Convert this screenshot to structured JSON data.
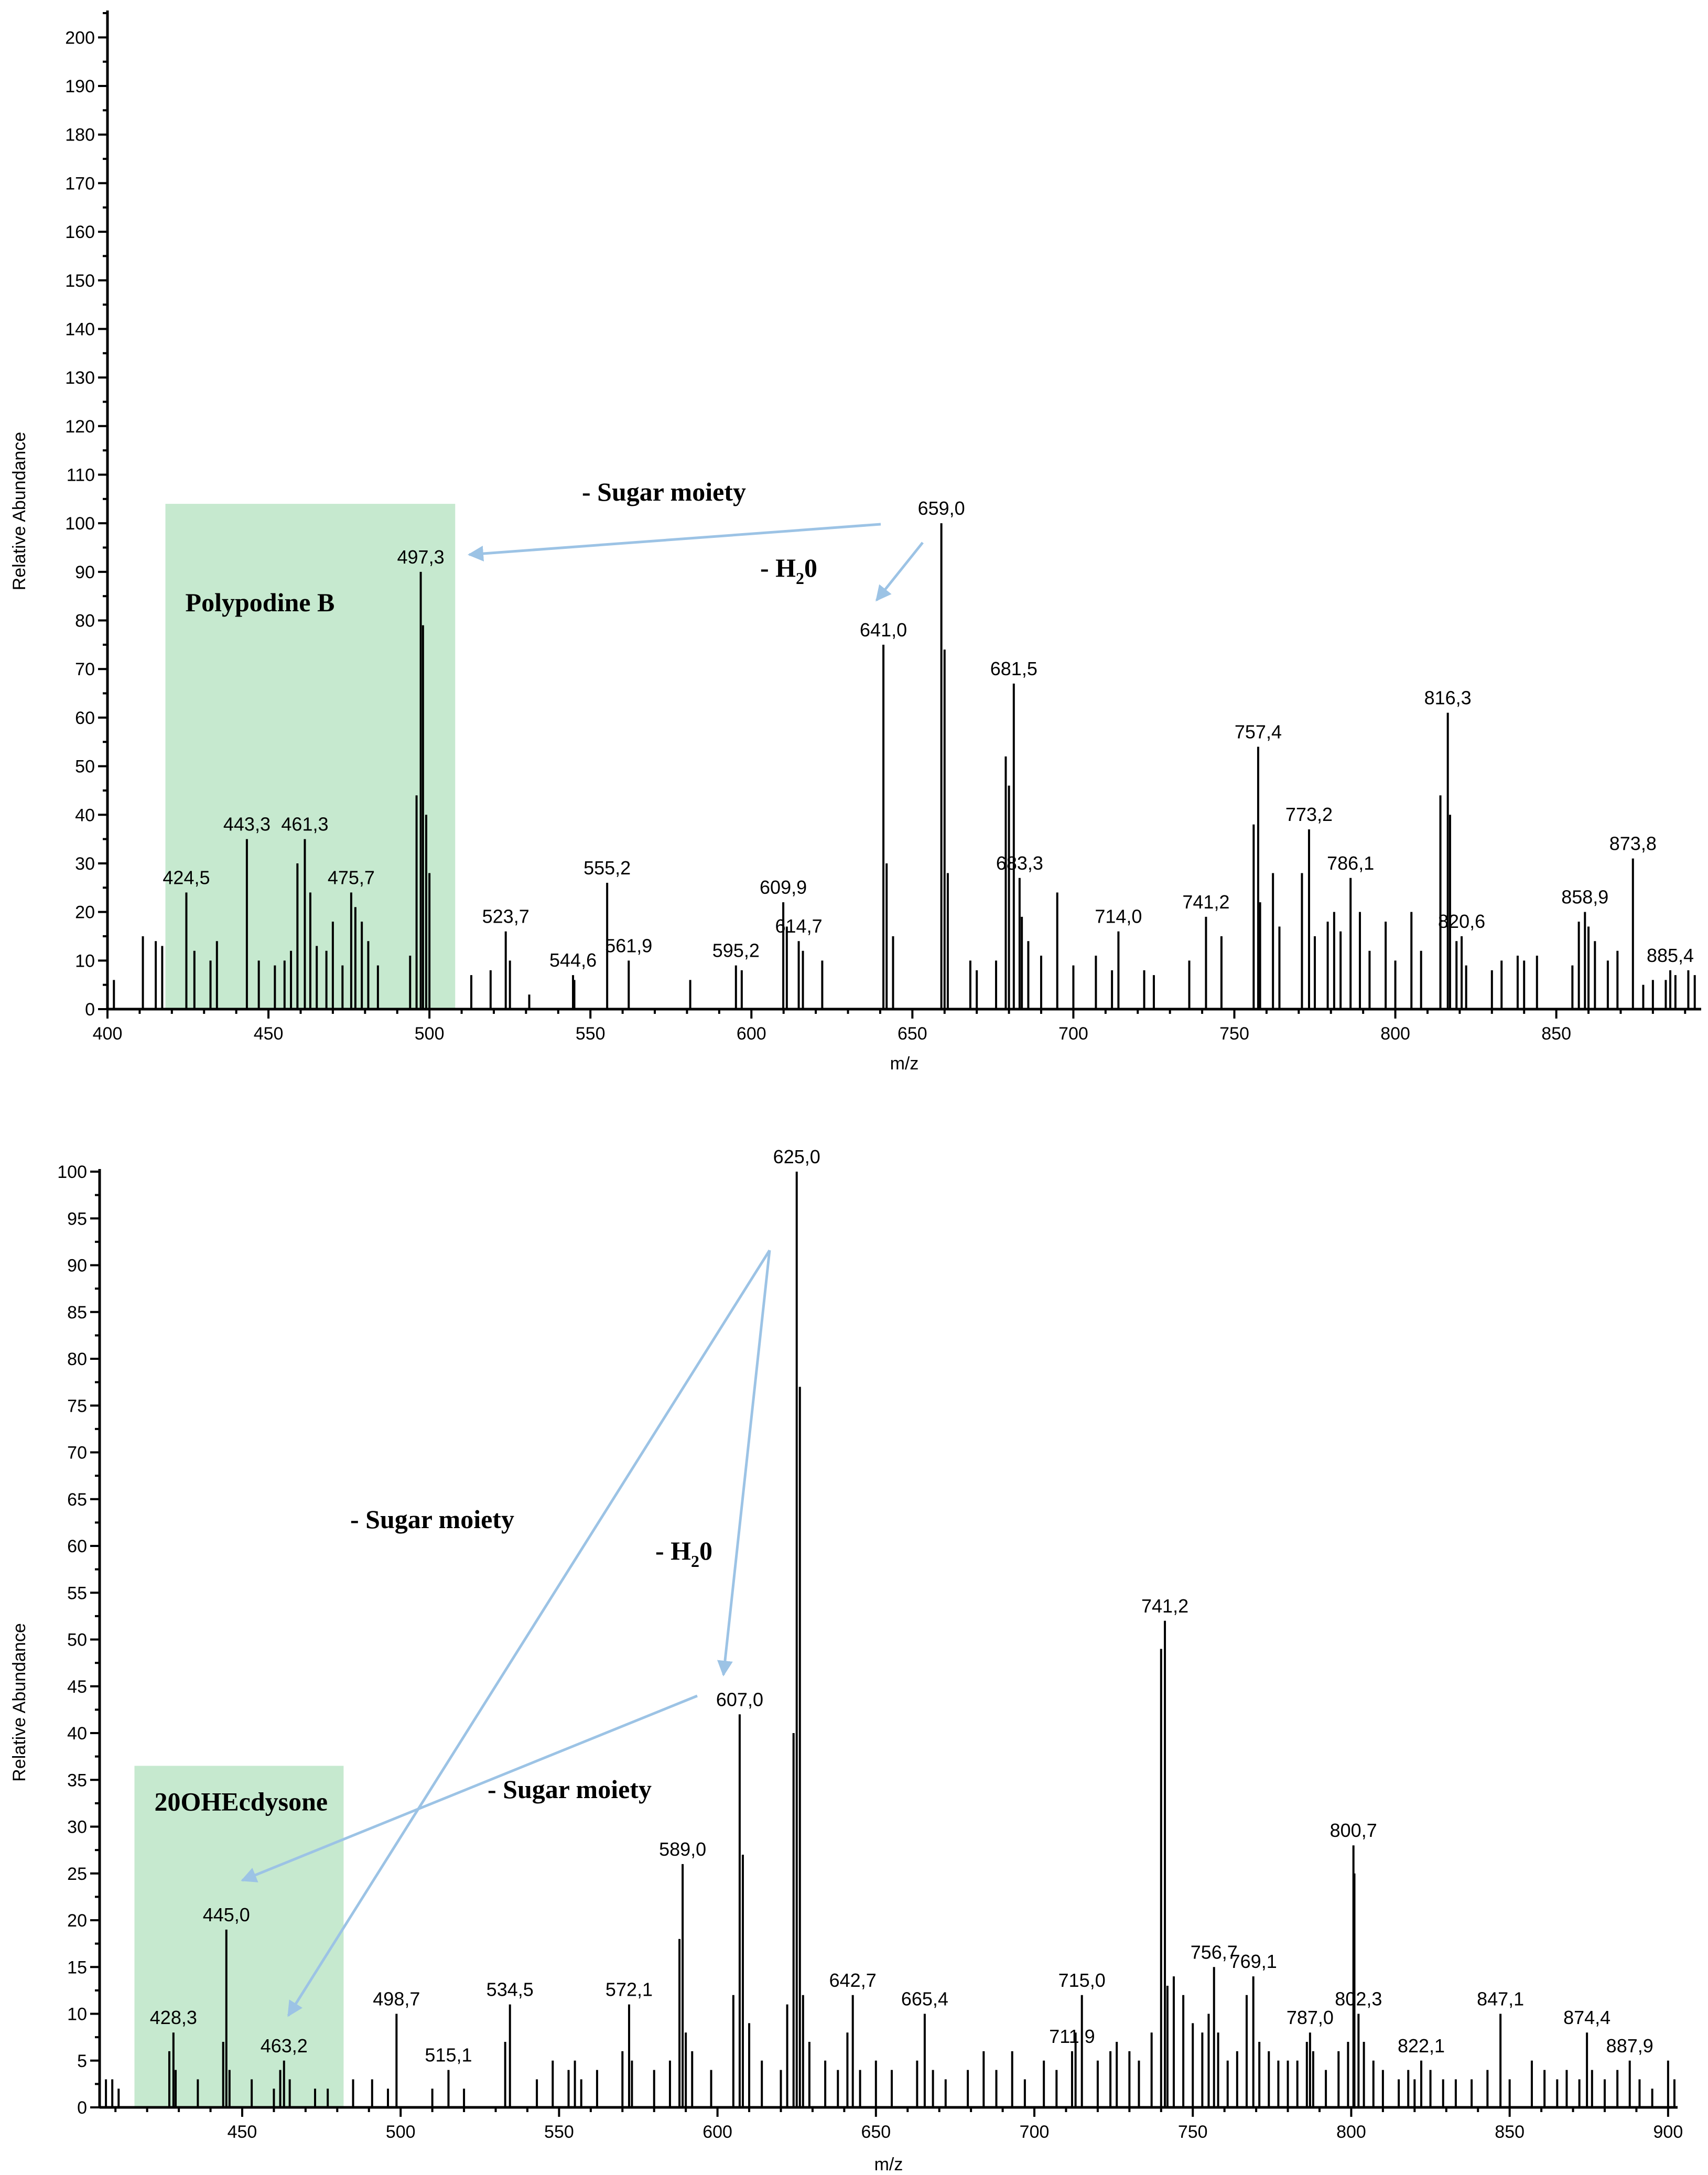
{
  "colors": {
    "highlight": "#c6e9cf",
    "arrow": "#9cc3e5",
    "bars": "#000000",
    "label_tick": "#2bbf4a"
  },
  "chart_data": [
    {
      "type": "bar",
      "title": "",
      "xlabel": "m/z",
      "ylabel": "Relative Abundance",
      "xlim": [
        400,
        895
      ],
      "ylim": [
        0,
        205
      ],
      "xticks": [
        400,
        450,
        500,
        550,
        600,
        650,
        700,
        750,
        800,
        850
      ],
      "yticks": [
        0,
        10,
        20,
        30,
        40,
        50,
        60,
        70,
        80,
        90,
        100,
        110,
        120,
        130,
        140,
        150,
        160,
        170,
        180,
        190,
        200
      ],
      "highlight": {
        "label": "Polypodine B",
        "x_range": [
          418,
          508
        ],
        "y_top": 104
      },
      "labeled_peaks": [
        {
          "mz": 424.5,
          "label": "424,5",
          "intensity": 24
        },
        {
          "mz": 443.3,
          "label": "443,3",
          "intensity": 35
        },
        {
          "mz": 461.3,
          "label": "461,3",
          "intensity": 35
        },
        {
          "mz": 475.7,
          "label": "475,7",
          "intensity": 24
        },
        {
          "mz": 497.3,
          "label": "497,3",
          "intensity": 90
        },
        {
          "mz": 523.7,
          "label": "523,7",
          "intensity": 16
        },
        {
          "mz": 544.6,
          "label": "544,6",
          "intensity": 7
        },
        {
          "mz": 555.2,
          "label": "555,2",
          "intensity": 26
        },
        {
          "mz": 561.9,
          "label": "561,9",
          "intensity": 10
        },
        {
          "mz": 595.2,
          "label": "595,2",
          "intensity": 9
        },
        {
          "mz": 609.9,
          "label": "609,9",
          "intensity": 22
        },
        {
          "mz": 614.7,
          "label": "614,7",
          "intensity": 14
        },
        {
          "mz": 641.0,
          "label": "641,0",
          "intensity": 75
        },
        {
          "mz": 659.0,
          "label": "659,0",
          "intensity": 100
        },
        {
          "mz": 681.5,
          "label": "681,5",
          "intensity": 67
        },
        {
          "mz": 683.3,
          "label": "683,3",
          "intensity": 27
        },
        {
          "mz": 714.0,
          "label": "714,0",
          "intensity": 16
        },
        {
          "mz": 741.2,
          "label": "741,2",
          "intensity": 19
        },
        {
          "mz": 757.4,
          "label": "757,4",
          "intensity": 54
        },
        {
          "mz": 773.2,
          "label": "773,2",
          "intensity": 37
        },
        {
          "mz": 786.1,
          "label": "786,1",
          "intensity": 27
        },
        {
          "mz": 816.3,
          "label": "816,3",
          "intensity": 61
        },
        {
          "mz": 820.6,
          "label": "820,6",
          "intensity": 15
        },
        {
          "mz": 858.9,
          "label": "858,9",
          "intensity": 20
        },
        {
          "mz": 873.8,
          "label": "873,8",
          "intensity": 31
        },
        {
          "mz": 885.4,
          "label": "885,4",
          "intensity": 8
        }
      ],
      "minor_peaks": [
        [
          402,
          6
        ],
        [
          411,
          15
        ],
        [
          415,
          14
        ],
        [
          417,
          13
        ],
        [
          427,
          12
        ],
        [
          432,
          10
        ],
        [
          434,
          14
        ],
        [
          447,
          10
        ],
        [
          452,
          9
        ],
        [
          455,
          10
        ],
        [
          457,
          12
        ],
        [
          459,
          30
        ],
        [
          463,
          24
        ],
        [
          465,
          13
        ],
        [
          468,
          12
        ],
        [
          470,
          18
        ],
        [
          473,
          9
        ],
        [
          477,
          21
        ],
        [
          479,
          18
        ],
        [
          481,
          14
        ],
        [
          484,
          9
        ],
        [
          494,
          11
        ],
        [
          496,
          44
        ],
        [
          498,
          79
        ],
        [
          499,
          40
        ],
        [
          500,
          28
        ],
        [
          513,
          7
        ],
        [
          519,
          8
        ],
        [
          525,
          10
        ],
        [
          531,
          3
        ],
        [
          545,
          6
        ],
        [
          581,
          6
        ],
        [
          597,
          8
        ],
        [
          611,
          17
        ],
        [
          616,
          12
        ],
        [
          622,
          10
        ],
        [
          642,
          30
        ],
        [
          644,
          15
        ],
        [
          660,
          74
        ],
        [
          661,
          28
        ],
        [
          668,
          10
        ],
        [
          670,
          8
        ],
        [
          676,
          10
        ],
        [
          679,
          52
        ],
        [
          680,
          46
        ],
        [
          684,
          19
        ],
        [
          686,
          14
        ],
        [
          690,
          11
        ],
        [
          695,
          24
        ],
        [
          700,
          9
        ],
        [
          707,
          11
        ],
        [
          712,
          8
        ],
        [
          722,
          8
        ],
        [
          725,
          7
        ],
        [
          736,
          10
        ],
        [
          746,
          15
        ],
        [
          756,
          38
        ],
        [
          758,
          22
        ],
        [
          762,
          28
        ],
        [
          764,
          17
        ],
        [
          771,
          28
        ],
        [
          775,
          15
        ],
        [
          779,
          18
        ],
        [
          781,
          20
        ],
        [
          783,
          16
        ],
        [
          789,
          20
        ],
        [
          792,
          12
        ],
        [
          797,
          18
        ],
        [
          800,
          10
        ],
        [
          805,
          20
        ],
        [
          808,
          12
        ],
        [
          814,
          44
        ],
        [
          817,
          40
        ],
        [
          819,
          14
        ],
        [
          822,
          9
        ],
        [
          830,
          8
        ],
        [
          833,
          10
        ],
        [
          838,
          11
        ],
        [
          840,
          10
        ],
        [
          844,
          11
        ],
        [
          855,
          9
        ],
        [
          857,
          18
        ],
        [
          860,
          17
        ],
        [
          862,
          14
        ],
        [
          866,
          10
        ],
        [
          869,
          12
        ],
        [
          877,
          5
        ],
        [
          880,
          6
        ],
        [
          884,
          6
        ],
        [
          887,
          7
        ],
        [
          891,
          8
        ],
        [
          893,
          7
        ]
      ],
      "annotations": {
        "sugar": "- Sugar moiety",
        "water_prefix": "- H",
        "water_sub": "2",
        "water_suffix": "0"
      }
    },
    {
      "type": "bar",
      "title": "",
      "xlabel": "m/z",
      "ylabel": "Relative Abundance",
      "xlim": [
        405,
        903
      ],
      "ylim": [
        0,
        100
      ],
      "xticks": [
        450,
        500,
        550,
        600,
        650,
        700,
        750,
        800,
        850,
        900
      ],
      "yticks": [
        0,
        5,
        10,
        15,
        20,
        25,
        30,
        35,
        40,
        45,
        50,
        55,
        60,
        65,
        70,
        75,
        80,
        85,
        90,
        95,
        100
      ],
      "highlight": {
        "label": "20OHEcdysone",
        "x_range": [
          416,
          482
        ],
        "y_top": 36.5
      },
      "labeled_peaks": [
        {
          "mz": 428.3,
          "label": "428,3",
          "intensity": 8
        },
        {
          "mz": 445.0,
          "label": "445,0",
          "intensity": 19
        },
        {
          "mz": 463.2,
          "label": "463,2",
          "intensity": 5
        },
        {
          "mz": 498.7,
          "label": "498,7",
          "intensity": 10
        },
        {
          "mz": 515.1,
          "label": "515,1",
          "intensity": 4
        },
        {
          "mz": 534.5,
          "label": "534,5",
          "intensity": 11
        },
        {
          "mz": 572.1,
          "label": "572,1",
          "intensity": 11
        },
        {
          "mz": 589.0,
          "label": "589,0",
          "intensity": 26
        },
        {
          "mz": 607.0,
          "label": "607,0",
          "intensity": 42
        },
        {
          "mz": 625.0,
          "label": "625,0",
          "intensity": 100
        },
        {
          "mz": 642.7,
          "label": "642,7",
          "intensity": 12
        },
        {
          "mz": 665.4,
          "label": "665,4",
          "intensity": 10
        },
        {
          "mz": 711.9,
          "label": "711,9",
          "intensity": 6
        },
        {
          "mz": 715.0,
          "label": "715,0",
          "intensity": 12
        },
        {
          "mz": 741.2,
          "label": "741,2",
          "intensity": 52
        },
        {
          "mz": 756.7,
          "label": "756,7",
          "intensity": 15
        },
        {
          "mz": 769.1,
          "label": "769,1",
          "intensity": 14
        },
        {
          "mz": 787.0,
          "label": "787,0",
          "intensity": 8
        },
        {
          "mz": 800.7,
          "label": "800,7",
          "intensity": 28
        },
        {
          "mz": 802.3,
          "label": "802,3",
          "intensity": 10
        },
        {
          "mz": 822.1,
          "label": "822,1",
          "intensity": 5
        },
        {
          "mz": 847.1,
          "label": "847,1",
          "intensity": 10
        },
        {
          "mz": 874.4,
          "label": "874,4",
          "intensity": 8
        },
        {
          "mz": 887.9,
          "label": "887,9",
          "intensity": 5
        }
      ],
      "minor_peaks": [
        [
          407,
          3
        ],
        [
          409,
          3
        ],
        [
          411,
          2
        ],
        [
          427,
          6
        ],
        [
          429,
          4
        ],
        [
          436,
          3
        ],
        [
          444,
          7
        ],
        [
          446,
          4
        ],
        [
          453,
          3
        ],
        [
          460,
          2
        ],
        [
          462,
          4
        ],
        [
          465,
          3
        ],
        [
          473,
          2
        ],
        [
          477,
          2
        ],
        [
          485,
          3
        ],
        [
          491,
          3
        ],
        [
          496,
          2
        ],
        [
          510,
          2
        ],
        [
          520,
          2
        ],
        [
          533,
          7
        ],
        [
          543,
          3
        ],
        [
          548,
          5
        ],
        [
          553,
          4
        ],
        [
          555,
          5
        ],
        [
          557,
          3
        ],
        [
          562,
          4
        ],
        [
          570,
          6
        ],
        [
          573,
          5
        ],
        [
          580,
          4
        ],
        [
          585,
          5
        ],
        [
          588,
          18
        ],
        [
          590,
          8
        ],
        [
          592,
          6
        ],
        [
          598,
          4
        ],
        [
          605,
          12
        ],
        [
          608,
          27
        ],
        [
          610,
          9
        ],
        [
          614,
          5
        ],
        [
          620,
          4
        ],
        [
          622,
          11
        ],
        [
          624,
          40
        ],
        [
          626,
          77
        ],
        [
          627,
          12
        ],
        [
          629,
          7
        ],
        [
          634,
          5
        ],
        [
          638,
          4
        ],
        [
          641,
          8
        ],
        [
          645,
          4
        ],
        [
          650,
          5
        ],
        [
          655,
          4
        ],
        [
          663,
          5
        ],
        [
          668,
          4
        ],
        [
          672,
          3
        ],
        [
          679,
          4
        ],
        [
          684,
          6
        ],
        [
          688,
          4
        ],
        [
          693,
          6
        ],
        [
          697,
          3
        ],
        [
          703,
          5
        ],
        [
          707,
          4
        ],
        [
          713,
          8
        ],
        [
          720,
          5
        ],
        [
          724,
          6
        ],
        [
          726,
          7
        ],
        [
          730,
          6
        ],
        [
          733,
          5
        ],
        [
          737,
          8
        ],
        [
          740,
          49
        ],
        [
          742,
          13
        ],
        [
          744,
          14
        ],
        [
          747,
          12
        ],
        [
          750,
          9
        ],
        [
          753,
          8
        ],
        [
          755,
          10
        ],
        [
          758,
          8
        ],
        [
          761,
          5
        ],
        [
          764,
          6
        ],
        [
          767,
          12
        ],
        [
          771,
          7
        ],
        [
          774,
          6
        ],
        [
          777,
          5
        ],
        [
          780,
          5
        ],
        [
          783,
          5
        ],
        [
          786,
          7
        ],
        [
          788,
          6
        ],
        [
          792,
          4
        ],
        [
          796,
          6
        ],
        [
          799,
          7
        ],
        [
          801,
          25
        ],
        [
          804,
          7
        ],
        [
          807,
          5
        ],
        [
          810,
          4
        ],
        [
          815,
          3
        ],
        [
          818,
          4
        ],
        [
          820,
          3
        ],
        [
          825,
          4
        ],
        [
          829,
          3
        ],
        [
          833,
          3
        ],
        [
          838,
          3
        ],
        [
          843,
          4
        ],
        [
          850,
          3
        ],
        [
          857,
          5
        ],
        [
          861,
          4
        ],
        [
          865,
          3
        ],
        [
          868,
          4
        ],
        [
          872,
          3
        ],
        [
          876,
          4
        ],
        [
          880,
          3
        ],
        [
          884,
          4
        ],
        [
          891,
          3
        ],
        [
          895,
          2
        ],
        [
          900,
          5
        ],
        [
          902,
          3
        ]
      ],
      "annotations": {
        "sugar1": "- Sugar moiety",
        "sugar2": "- Sugar moiety",
        "water_prefix": "- H",
        "water_sub": "2",
        "water_suffix": "0"
      }
    }
  ]
}
